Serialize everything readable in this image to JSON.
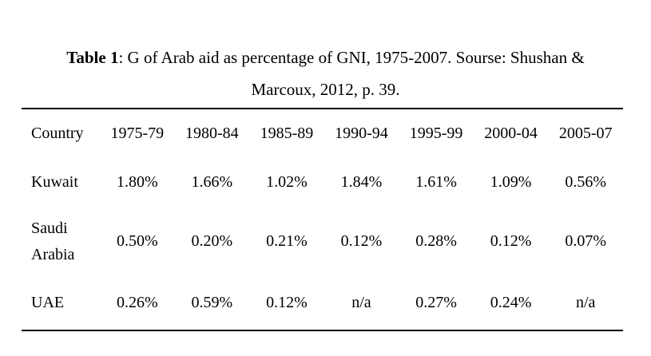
{
  "page": {
    "background": "#ffffff",
    "text_color": "#000000",
    "rule_color": "#000000"
  },
  "caption": {
    "label": "Table 1",
    "line1_rest": ": G of Arab aid as percentage of GNI, 1975-2007. Sourse: Shushan &",
    "line2": "Marcoux, 2012, p. 39."
  },
  "table": {
    "columns": [
      "Country",
      "1975-79",
      "1980-84",
      "1985-89",
      "1990-94",
      "1995-99",
      "2000-04",
      "2005-07"
    ],
    "rows": [
      {
        "country": "Kuwait",
        "values": [
          "1.80%",
          "1.66%",
          "1.02%",
          "1.84%",
          "1.61%",
          "1.09%",
          "0.56%"
        ]
      },
      {
        "country": "Saudi Arabia",
        "values": [
          "0.50%",
          "0.20%",
          "0.21%",
          "0.12%",
          "0.28%",
          "0.12%",
          "0.07%"
        ]
      },
      {
        "country": "UAE",
        "values": [
          "0.26%",
          "0.59%",
          "0.12%",
          "n/a",
          "0.27%",
          "0.24%",
          "n/a"
        ]
      }
    ]
  }
}
